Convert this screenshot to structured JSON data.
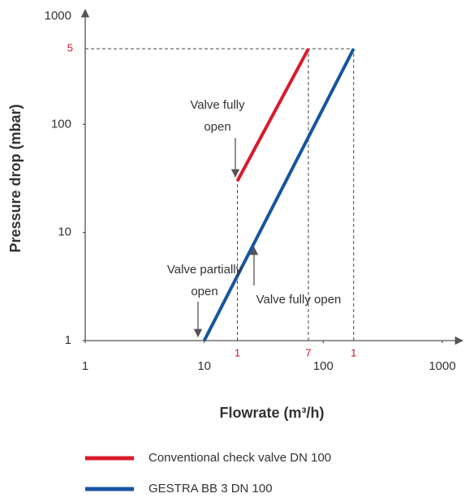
{
  "chart_data": {
    "type": "line",
    "xlabel": "Flowrate (m³/h)",
    "ylabel": "Pressure drop (mbar)",
    "xscale": "log",
    "yscale": "log",
    "xlim": [
      1,
      1000
    ],
    "ylim": [
      1,
      1000
    ],
    "xticks": [
      1,
      10,
      100,
      1000
    ],
    "yticks": [
      1,
      10,
      100,
      1000
    ],
    "x_markers": [
      {
        "value": 19,
        "label": "1"
      },
      {
        "value": 75,
        "label": "7"
      },
      {
        "value": 180,
        "label": "1"
      }
    ],
    "y_markers": [
      {
        "value": 500,
        "label": "5"
      }
    ],
    "marker_color": "#d0102a",
    "series": [
      {
        "name": "Conventional check valve DN 100",
        "color": "#d91a2a",
        "x": [
          19,
          75
        ],
        "values": [
          30,
          500
        ]
      },
      {
        "name": "GESTRA BB 3 DN 100",
        "color": "#1655a0",
        "x": [
          10,
          180
        ],
        "values": [
          1,
          500
        ]
      }
    ],
    "annotations": [
      {
        "lines": [
          "Valve fully",
          "open"
        ]
      },
      {
        "lines": [
          "Valve partially",
          "open"
        ]
      },
      {
        "lines": [
          "Valve fully open"
        ]
      }
    ]
  }
}
